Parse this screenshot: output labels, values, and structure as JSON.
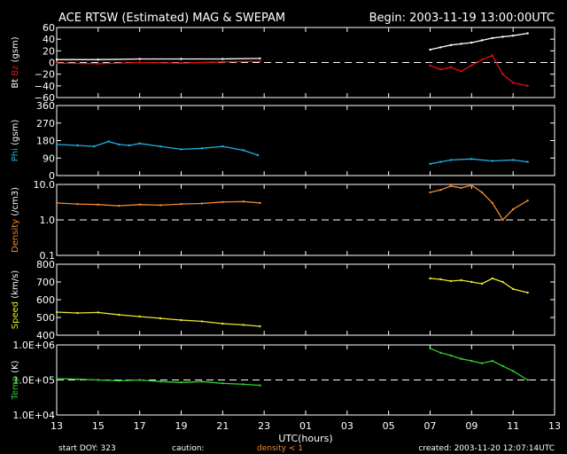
{
  "header": {
    "title": "ACE RTSW (Estimated) MAG & SWEPAM",
    "begin": "Begin: 2003-11-19 13:00:00UTC"
  },
  "footer": {
    "start_doy": "start DOY: 323",
    "caution": "caution:",
    "density_note": "density < 1",
    "created": "created: 2003-11-20 12:07:14UTC"
  },
  "colors": {
    "background": "#000000",
    "frame": "#ffffff",
    "bt": "#ffffff",
    "bz": "#e01010",
    "phi": "#20b0e0",
    "density": "#f08a30",
    "speed": "#e8e830",
    "temp": "#30d030"
  },
  "chart_data": {
    "type": "line",
    "xlabel": "UTC(hours)",
    "x_ticks": [
      "13",
      "15",
      "17",
      "19",
      "21",
      "23",
      "01",
      "03",
      "05",
      "07",
      "09",
      "11",
      "13"
    ],
    "x_range_hours": [
      0,
      24
    ],
    "panels": [
      {
        "id": "mag",
        "ylabel_parts": [
          "Bt",
          "Bz",
          "(gsm)"
        ],
        "ylim": [
          -60,
          60
        ],
        "y_ticks": [
          "60",
          "40",
          "20",
          "0",
          "−20",
          "−40",
          "−60"
        ],
        "y_tick_values": [
          60,
          40,
          20,
          0,
          -20,
          -40,
          -60
        ],
        "scale": "linear",
        "reference_line": 0,
        "series": [
          {
            "name": "Bt",
            "color_key": "bt",
            "x": [
              0.0,
              2.0,
              4.0,
              6.0,
              8.0,
              9.8,
              18.0,
              18.5,
              19.0,
              19.5,
              20.0,
              20.5,
              21.0,
              21.5,
              22.0,
              22.7
            ],
            "y": [
              5,
              5,
              6,
              6,
              6,
              7,
              22,
              26,
              30,
              32,
              34,
              38,
              42,
              44,
              46,
              50
            ]
          },
          {
            "name": "Bz",
            "color_key": "bz",
            "x": [
              0.0,
              2.0,
              4.0,
              6.0,
              8.0,
              9.8,
              18.0,
              18.5,
              19.0,
              19.5,
              20.0,
              20.5,
              21.0,
              21.5,
              22.0,
              22.7
            ],
            "y": [
              -1,
              -2,
              0,
              -1,
              1,
              2,
              -5,
              -12,
              -8,
              -15,
              -5,
              5,
              12,
              -20,
              -35,
              -40
            ]
          }
        ]
      },
      {
        "id": "phi",
        "ylabel_parts": [
          "Phi",
          "(gsm)"
        ],
        "ylim": [
          0,
          360
        ],
        "y_ticks": [
          "360",
          "270",
          "180",
          "90",
          "0"
        ],
        "y_tick_values": [
          360,
          270,
          180,
          90,
          0
        ],
        "scale": "linear",
        "series": [
          {
            "name": "Phi",
            "color_key": "phi",
            "x": [
              0.0,
              1.0,
              1.8,
              2.5,
              3.0,
              3.5,
              4.0,
              5.0,
              6.0,
              7.0,
              8.0,
              9.0,
              9.7,
              18.0,
              18.5,
              19.0,
              20.0,
              21.0,
              22.0,
              22.7
            ],
            "y": [
              160,
              155,
              150,
              175,
              160,
              155,
              165,
              150,
              135,
              140,
              150,
              130,
              105,
              60,
              70,
              80,
              85,
              75,
              80,
              70
            ]
          }
        ]
      },
      {
        "id": "density",
        "ylabel_parts": [
          "Density",
          "(/cm3)"
        ],
        "ylim": [
          0.1,
          10
        ],
        "y_ticks": [
          "10.0",
          "1.0",
          "0.1"
        ],
        "y_tick_values": [
          10,
          1,
          0.1
        ],
        "scale": "log",
        "reference_line": 1,
        "series": [
          {
            "name": "Density",
            "color_key": "density",
            "x": [
              0.0,
              1.0,
              2.0,
              3.0,
              4.0,
              5.0,
              6.0,
              7.0,
              8.0,
              9.0,
              9.8,
              18.0,
              18.5,
              19.0,
              19.5,
              20.0,
              20.5,
              21.0,
              21.5,
              22.0,
              22.7
            ],
            "y": [
              3.0,
              2.8,
              2.7,
              2.5,
              2.7,
              2.6,
              2.8,
              2.9,
              3.2,
              3.3,
              3.0,
              6.0,
              7.0,
              9.0,
              8.0,
              9.5,
              6.0,
              3.0,
              1.0,
              2.0,
              3.5
            ]
          }
        ]
      },
      {
        "id": "speed",
        "ylabel_parts": [
          "Speed",
          "(km/s)"
        ],
        "ylim": [
          400,
          800
        ],
        "y_ticks": [
          "800",
          "700",
          "600",
          "500",
          "400"
        ],
        "y_tick_values": [
          800,
          700,
          600,
          500,
          400
        ],
        "scale": "linear",
        "series": [
          {
            "name": "Speed",
            "color_key": "speed",
            "x": [
              0.0,
              1.0,
              2.0,
              3.0,
              4.0,
              5.0,
              6.0,
              7.0,
              8.0,
              9.0,
              9.8,
              18.0,
              18.5,
              19.0,
              19.5,
              20.0,
              20.5,
              21.0,
              21.5,
              22.0,
              22.7
            ],
            "y": [
              530,
              525,
              528,
              515,
              505,
              495,
              485,
              478,
              465,
              458,
              450,
              720,
              715,
              705,
              710,
              700,
              690,
              720,
              700,
              660,
              640
            ]
          }
        ]
      },
      {
        "id": "temp",
        "ylabel_parts": [
          "Temp",
          "(K)"
        ],
        "ylim": [
          10000,
          1000000
        ],
        "y_ticks": [
          "1.0E+06",
          "1.0E+05",
          "1.0E+04"
        ],
        "y_tick_values": [
          1000000,
          100000,
          10000
        ],
        "scale": "log",
        "reference_line": 100000,
        "series": [
          {
            "name": "Temp",
            "color_key": "temp",
            "x": [
              0.0,
              1.0,
              2.0,
              3.0,
              4.0,
              5.0,
              6.0,
              7.0,
              8.0,
              9.0,
              9.8,
              18.0,
              18.5,
              19.0,
              19.5,
              20.0,
              20.5,
              21.0,
              21.5,
              22.0,
              22.7
            ],
            "y": [
              110000,
              105000,
              100000,
              95000,
              100000,
              90000,
              85000,
              90000,
              80000,
              75000,
              70000,
              800000,
              600000,
              500000,
              400000,
              350000,
              300000,
              350000,
              250000,
              180000,
              100000
            ]
          }
        ]
      }
    ]
  }
}
